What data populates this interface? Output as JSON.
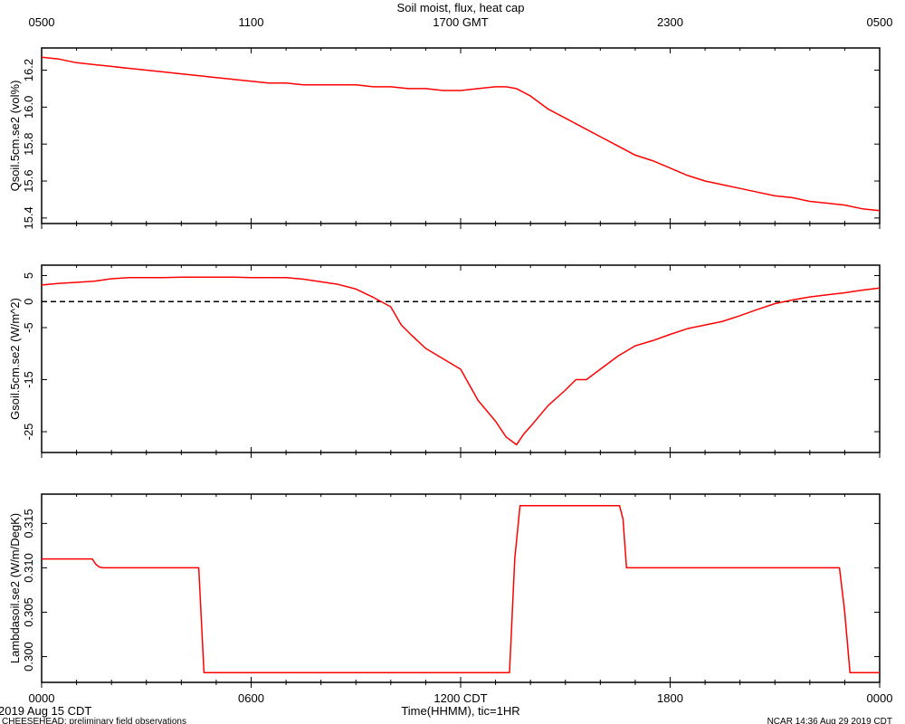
{
  "header": {
    "title": "Soil moist, flux, heat cap",
    "top_ticks": [
      "0500",
      "1100",
      "1700 GMT",
      "2300",
      "0500"
    ]
  },
  "footer": {
    "date_label": "2019 Aug 15 CDT",
    "project_label": "CHEESEHEAD: preliminary field observations",
    "credit_label": "NCAR 14:36 Aug 29 2019 CDT",
    "xlabel": "Time(HHMM), tic=1HR",
    "bottom_ticks": [
      "0000",
      "0600",
      "1200 CDT",
      "1800",
      "0000"
    ]
  },
  "colors": {
    "series": "#ff0000",
    "axes": "#000000",
    "zero_line": "#000000"
  },
  "chart_data": [
    {
      "type": "line",
      "ylabel": "Qsoil.5cm.se2 (vol%)",
      "xlim": [
        0,
        24
      ],
      "ylim": [
        15.37,
        16.32
      ],
      "yticks": [
        15.4,
        15.6,
        15.8,
        16.0,
        16.2
      ],
      "ytick_labels": [
        "15.4",
        "15.6",
        "15.8",
        "16.0",
        "16.2"
      ],
      "grid": false,
      "series": [
        {
          "x": [
            0,
            0.5,
            1,
            1.5,
            2,
            2.5,
            3,
            3.5,
            4,
            4.5,
            5,
            5.5,
            6,
            6.5,
            7,
            7.5,
            8,
            8.5,
            9,
            9.5,
            10,
            10.5,
            11,
            11.5,
            12,
            12.5,
            13,
            13.3,
            13.6,
            14,
            14.5,
            15,
            15.5,
            16,
            16.5,
            17,
            17.5,
            18,
            18.5,
            19,
            19.5,
            20,
            20.5,
            21,
            21.5,
            22,
            22.5,
            23,
            23.5,
            24
          ],
          "y": [
            16.27,
            16.26,
            16.24,
            16.23,
            16.22,
            16.21,
            16.2,
            16.19,
            16.18,
            16.17,
            16.16,
            16.15,
            16.14,
            16.13,
            16.13,
            16.12,
            16.12,
            16.12,
            16.12,
            16.11,
            16.11,
            16.1,
            16.1,
            16.09,
            16.09,
            16.1,
            16.11,
            16.11,
            16.1,
            16.06,
            15.99,
            15.94,
            15.89,
            15.84,
            15.79,
            15.74,
            15.71,
            15.67,
            15.63,
            15.6,
            15.58,
            15.56,
            15.54,
            15.52,
            15.51,
            15.49,
            15.48,
            15.47,
            15.45,
            15.44
          ]
        }
      ]
    },
    {
      "type": "line",
      "ylabel": "Gsoil.5cm.se2 (W/m^2)",
      "xlim": [
        0,
        24
      ],
      "ylim": [
        -29,
        7
      ],
      "yticks": [
        5,
        0,
        -5,
        -15,
        -25
      ],
      "ytick_labels": [
        "5",
        "0",
        "-5",
        "-15",
        "-25"
      ],
      "reference_line": 0,
      "grid": false,
      "series": [
        {
          "x": [
            0,
            0.5,
            1,
            1.5,
            2,
            2.5,
            3,
            3.5,
            4,
            4.5,
            5,
            5.5,
            6,
            6.5,
            7,
            7.5,
            8,
            8.5,
            9,
            9.5,
            10,
            10.3,
            10.6,
            11,
            11.5,
            12,
            12.5,
            13,
            13.3,
            13.6,
            13.8,
            14,
            14.5,
            15,
            15.3,
            15.6,
            16,
            16.5,
            17,
            17.5,
            18,
            18.5,
            19,
            19.5,
            20,
            20.5,
            21,
            21.5,
            22,
            22.5,
            23,
            23.5,
            24
          ],
          "y": [
            3.2,
            3.5,
            3.7,
            3.9,
            4.4,
            4.6,
            4.6,
            4.6,
            4.7,
            4.7,
            4.7,
            4.7,
            4.6,
            4.6,
            4.6,
            4.3,
            3.8,
            3.3,
            2.4,
            0.8,
            -1.0,
            -4.5,
            -6.5,
            -9.0,
            -11.0,
            -13.0,
            -19.0,
            -23.0,
            -26.0,
            -27.5,
            -25.5,
            -24.0,
            -20.0,
            -17.0,
            -15.0,
            -15.0,
            -13.0,
            -10.5,
            -8.5,
            -7.5,
            -6.3,
            -5.2,
            -4.5,
            -3.8,
            -2.7,
            -1.5,
            -0.4,
            0.3,
            0.9,
            1.3,
            1.7,
            2.2,
            2.6
          ]
        }
      ]
    },
    {
      "type": "line",
      "ylabel": "Lambdasoil.se2 (W/m/DegK)",
      "xlim": [
        0,
        24
      ],
      "ylim": [
        0.2971,
        0.3183
      ],
      "yticks": [
        0.3,
        0.305,
        0.31,
        0.315
      ],
      "ytick_labels": [
        "0.300",
        "0.305",
        "0.310",
        "0.315"
      ],
      "grid": false,
      "series": [
        {
          "x": [
            0,
            1.45,
            1.55,
            1.65,
            1.75,
            4.5,
            4.65,
            13.4,
            13.55,
            13.7,
            16.55,
            16.65,
            16.75,
            22.85,
            23.0,
            23.15,
            24
          ],
          "y": [
            0.311,
            0.311,
            0.3104,
            0.3101,
            0.31,
            0.31,
            0.2982,
            0.2982,
            0.311,
            0.317,
            0.317,
            0.3155,
            0.31,
            0.31,
            0.305,
            0.2982,
            0.2982
          ]
        }
      ]
    }
  ]
}
